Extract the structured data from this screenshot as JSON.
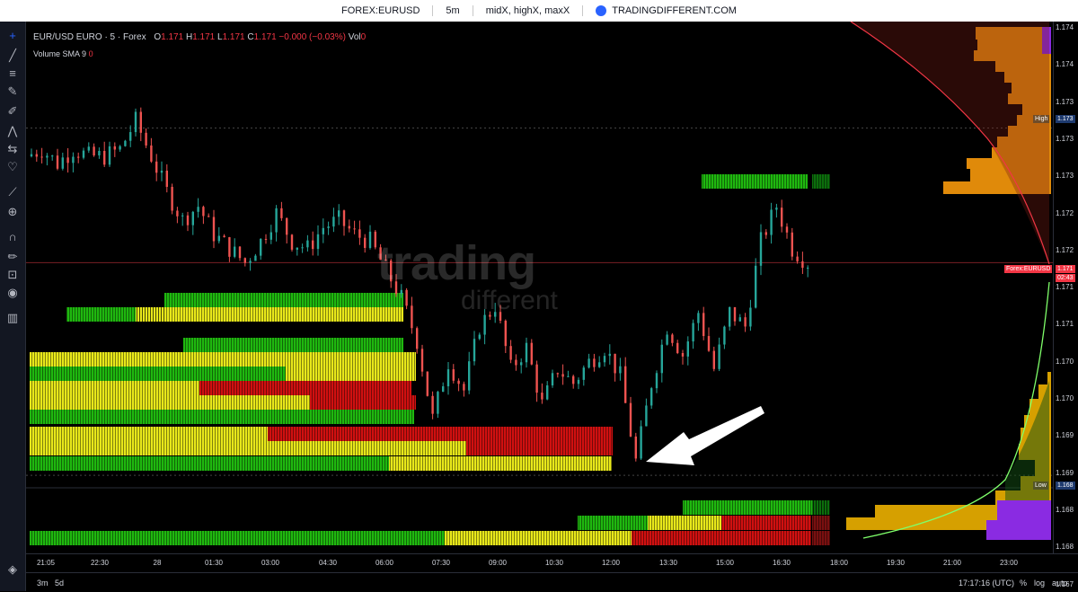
{
  "topbar": {
    "symbol": "FOREX:EURUSD",
    "interval": "5m",
    "studies": "midX, highX, maxX",
    "brand": "TRADINGDIFFERENT.COM"
  },
  "legend": {
    "title": "EUR/USD EURO · 5 · Forex",
    "o_label": "O",
    "o_value": "1.171",
    "h_label": "H",
    "h_value": "1.171",
    "l_label": "L",
    "l_value": "1.171",
    "c_label": "C",
    "c_value": "1.171 −0.000 (−0.03%)",
    "vol_label": "Vol",
    "vol_value": "0",
    "volume_sma_label": "Volume SMA 9",
    "volume_sma_value": "0"
  },
  "watermark": {
    "line1": "trading",
    "line2": "different"
  },
  "price_axis": {
    "labels": [
      "1.174",
      "1.174",
      "1.173",
      "1.173",
      "1.173",
      "1.172",
      "1.172",
      "1.171",
      "1.171",
      "1.170",
      "1.170",
      "1.169",
      "1.169",
      "1.168",
      "1.168",
      "1.167"
    ],
    "high_tag": "High",
    "high_value": "1.173",
    "low_tag": "Low",
    "low_value": "1.168",
    "symbol_tag": "Forex:EURUSD",
    "last_value": "1.171",
    "countdown": "02:43"
  },
  "time_axis": {
    "labels": [
      "21:05",
      "22:30",
      "28",
      "01:30",
      "03:00",
      "04:30",
      "06:00",
      "07:30",
      "09:00",
      "10:30",
      "12:00",
      "13:30",
      "15:00",
      "16:30",
      "18:00",
      "19:30",
      "21:00",
      "23:00"
    ]
  },
  "bottom_bar": {
    "range_3m": "3m",
    "range_5d": "5d",
    "clock": "17:17:16 (UTC)",
    "percent": "%",
    "log": "log",
    "auto": "auto"
  },
  "colors": {
    "up": "#26a69a",
    "down": "#ef5350",
    "green": "#1fb80f",
    "yellow": "#e8e81a",
    "red": "#d01010",
    "orange": "#e08a0a",
    "purple": "#8a2be2"
  },
  "chart_data": {
    "type": "candlestick",
    "interval": "5m",
    "ylim": [
      1.1672,
      1.1745
    ],
    "session_high": 1.1731,
    "session_low": 1.1682,
    "last_price": 1.1712,
    "close_path": [
      1.1727,
      1.1728,
      1.1726,
      1.1728,
      1.1727,
      1.1727,
      1.1728,
      1.1732,
      1.1727,
      1.1722,
      1.1718,
      1.172,
      1.1716,
      1.1714,
      1.1712,
      1.1715,
      1.1719,
      1.1715,
      1.1714,
      1.1717,
      1.1718,
      1.1716,
      1.1715,
      1.1711,
      1.1707,
      1.1701,
      1.169,
      1.1698,
      1.1694,
      1.1703,
      1.1706,
      1.1697,
      1.17,
      1.1692,
      1.1697,
      1.1695,
      1.1698,
      1.17,
      1.1696,
      1.1684,
      1.1695,
      1.1703,
      1.1699,
      1.1705,
      1.1697,
      1.1705,
      1.1703,
      1.1715,
      1.172,
      1.1714,
      1.1712
    ]
  }
}
